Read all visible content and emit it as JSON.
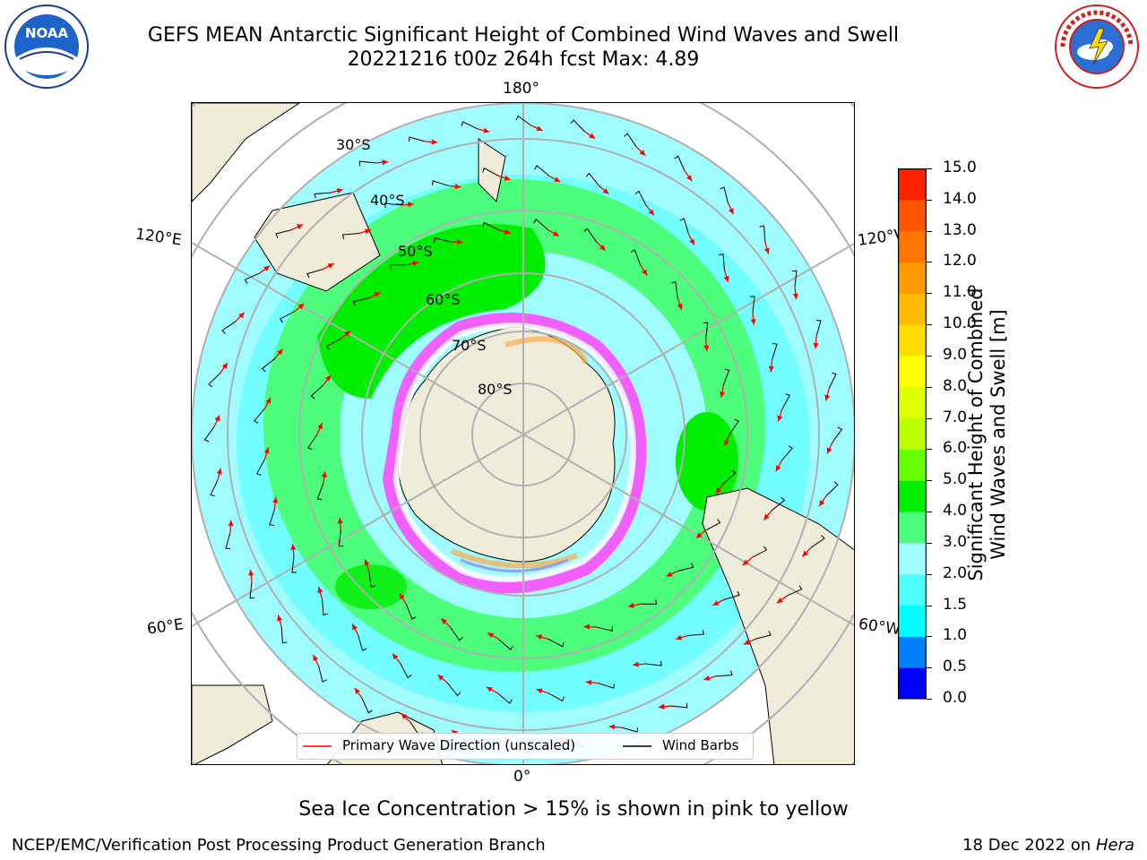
{
  "title": {
    "line1": "GEFS MEAN Antarctic Significant Height of Combined Wind Waves and Swell",
    "line2": "20221216 t00z 264h fcst   Max: 4.89"
  },
  "logos": {
    "left": "noa-logo-icon",
    "right": "nws-logo-icon",
    "noaa_text": "NOAA"
  },
  "map": {
    "projection": "south-polar-stereographic",
    "longitude_labels": {
      "top": "180°",
      "bottom": "0°",
      "left_upper": "120°E",
      "left_lower": "60°E",
      "right_upper": "120°W",
      "right_lower": "60°W"
    },
    "latitude_labels": [
      "30°S",
      "40°S",
      "50°S",
      "60°S",
      "70°S",
      "80°S"
    ],
    "colors": {
      "land": "#efedda",
      "ocean_low": "#9ffcff",
      "ocean_mid": "#4dffff",
      "ocean_high": "#4cfe7b",
      "ocean_peak": "#00ee00",
      "sea_ice_pink": "#ff44ff",
      "arrow": "#ff0000",
      "barb": "#000000",
      "grid": "#b0b0b0"
    }
  },
  "legend": {
    "arrow_label": "Primary Wave Direction (unscaled)",
    "barb_label": "Wind Barbs"
  },
  "colorbar": {
    "label_line1": "Significant Height of Combined",
    "label_line2": "Wind Waves and Swell [m]",
    "ticks": [
      "0.0",
      "0.5",
      "1.0",
      "1.5",
      "2.0",
      "3.0",
      "4.0",
      "5.0",
      "6.0",
      "7.0",
      "8.0",
      "9.0",
      "10.0",
      "11.0",
      "12.0",
      "13.0",
      "14.0",
      "15.0"
    ],
    "colors": [
      "#0000ff",
      "#0080ff",
      "#00ffff",
      "#4dffff",
      "#9ffcff",
      "#4cfe7b",
      "#00ee00",
      "#66ff00",
      "#bbff00",
      "#ddff00",
      "#ffff00",
      "#ffdd00",
      "#ffbb00",
      "#ff9900",
      "#ff7700",
      "#ff5500",
      "#ff2200"
    ]
  },
  "note": "Sea Ice Concentration > 15% is shown in pink to yellow",
  "footer": {
    "left": "NCEP/EMC/Verification Post Processing Product Generation Branch",
    "right_date": "18 Dec 2022 on ",
    "right_host": "Hera"
  }
}
